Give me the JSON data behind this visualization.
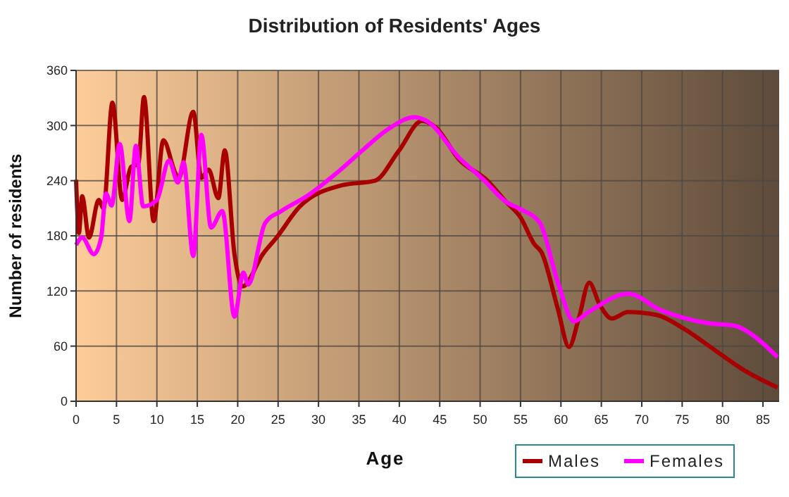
{
  "chart_data": {
    "type": "line",
    "title": "Distribution of Residents' Ages",
    "xlabel": "Age",
    "ylabel": "Number of residents",
    "xlim": [
      0,
      87
    ],
    "xticks": [
      0,
      5,
      10,
      15,
      20,
      25,
      30,
      35,
      40,
      45,
      50,
      55,
      60,
      65,
      70,
      75,
      80,
      85
    ],
    "ylim": [
      0,
      360
    ],
    "yticks": [
      0,
      60,
      120,
      180,
      240,
      300,
      360
    ],
    "grid": true,
    "legend": "bottom right",
    "line_style": "solid",
    "series": [
      {
        "name": "Males",
        "color": "#a80000",
        "x": [
          0,
          0.35,
          0.75,
          1.6,
          2.8,
          3.4,
          4.5,
          5.7,
          6.8,
          7.7,
          8.4,
          9.6,
          10.8,
          12.3,
          12.7,
          14.5,
          15.5,
          16.4,
          17.6,
          18.4,
          19.6,
          20.6,
          23.1,
          24.8,
          27.7,
          32.9,
          37.0,
          39.9,
          42.8,
          44.5,
          47.4,
          50.9,
          53.2,
          55.0,
          56.7,
          57.6,
          59.6,
          61.0,
          62.2,
          63.5,
          64.8,
          66.3,
          68.3,
          71.8,
          75.2,
          79.3,
          82.8,
          86.8
        ],
        "values": [
          241,
          183,
          223,
          178,
          219,
          210,
          325,
          219,
          255,
          258,
          331,
          196,
          284,
          248,
          243,
          315,
          243,
          252,
          221,
          273,
          160,
          125,
          160,
          178,
          212,
          235,
          240,
          272,
          305,
          298,
          263,
          240,
          217,
          200,
          171,
          162,
          101,
          59,
          90,
          129,
          105,
          90,
          97,
          94,
          79,
          54,
          33,
          15
        ]
      },
      {
        "name": "Females",
        "color": "#ff00ff",
        "x": [
          0,
          0.75,
          2.2,
          3.1,
          3.7,
          4.4,
          5.4,
          6.6,
          7.4,
          8.3,
          10.0,
          11.5,
          12.6,
          13.3,
          14.5,
          15.5,
          16.7,
          18.1,
          19.6,
          20.7,
          21.3,
          23.4,
          25.4,
          28.7,
          32.2,
          35.7,
          38.6,
          41.9,
          43.4,
          47.4,
          50.3,
          53.2,
          55.0,
          57.4,
          59.6,
          61.6,
          63.4,
          68.3,
          72.4,
          78.2,
          81.6,
          83.4,
          86.8
        ],
        "values": [
          170,
          178,
          160,
          178,
          226,
          213,
          280,
          196,
          278,
          212,
          219,
          262,
          238,
          260,
          158,
          290,
          189,
          207,
          92,
          140,
          127,
          194,
          207,
          224,
          248,
          275,
          296,
          309,
          305,
          265,
          242,
          217,
          209,
          194,
          130,
          87,
          97,
          117,
          99,
          85,
          82,
          74,
          48
        ]
      }
    ]
  }
}
